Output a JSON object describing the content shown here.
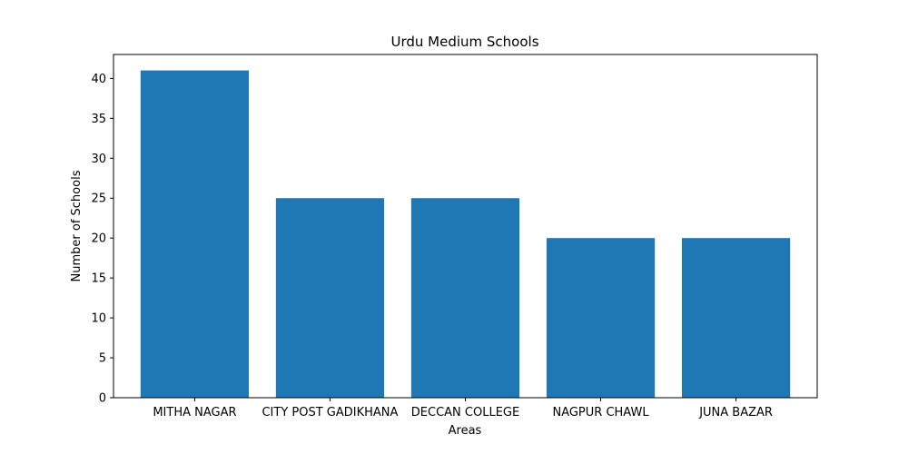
{
  "chart_data": {
    "type": "bar",
    "title": "Urdu Medium Schools",
    "xlabel": "Areas",
    "ylabel": "Number of Schools",
    "categories": [
      "MITHA NAGAR",
      "CITY POST GADIKHANA",
      "DECCAN COLLEGE",
      "NAGPUR CHAWL",
      "JUNA BAZAR"
    ],
    "values": [
      41,
      25,
      25,
      20,
      20
    ],
    "ylim": [
      0,
      43
    ],
    "yticks": [
      0,
      5,
      10,
      15,
      20,
      25,
      30,
      35,
      40
    ],
    "grid": false,
    "legend": "none",
    "bar_color": "#1f77b4"
  }
}
